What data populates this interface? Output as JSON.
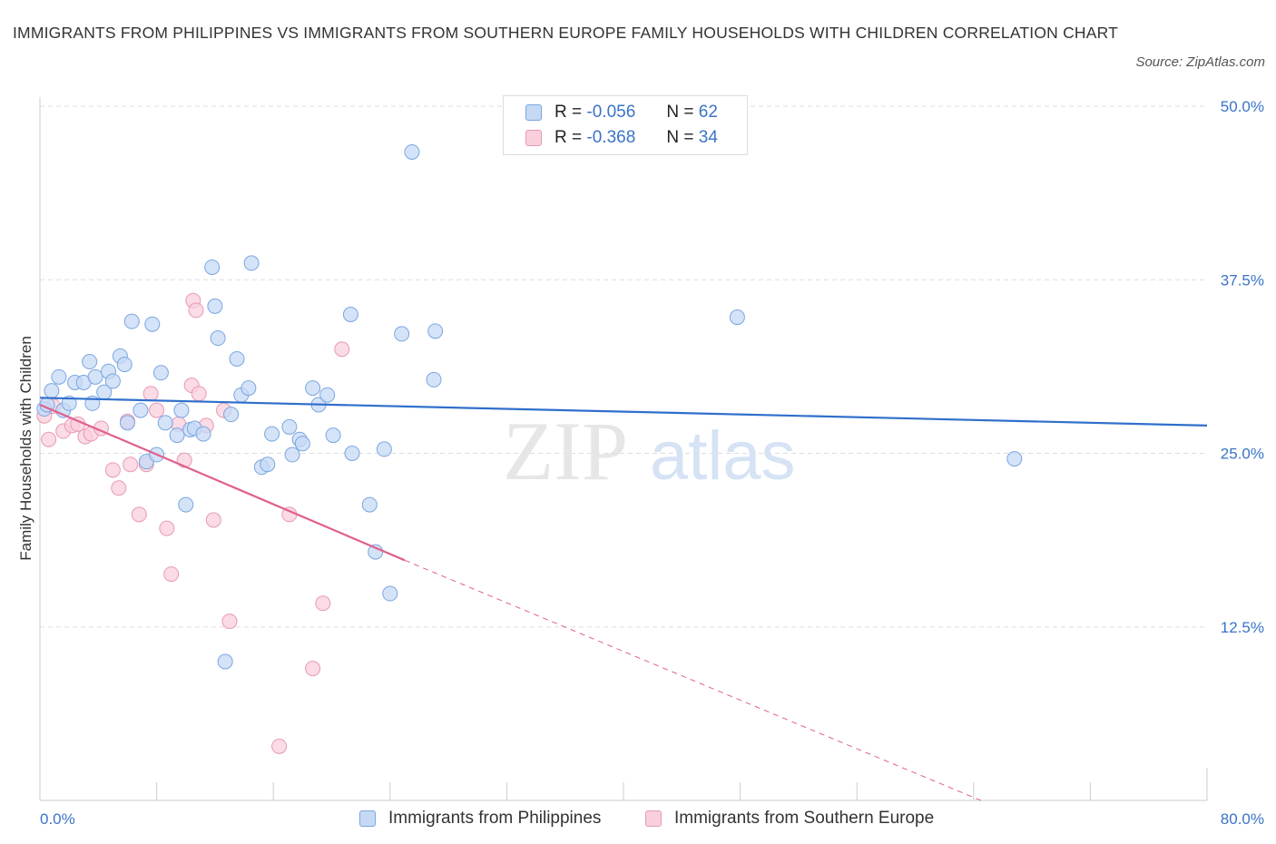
{
  "title": "IMMIGRANTS FROM PHILIPPINES VS IMMIGRANTS FROM SOUTHERN EUROPE FAMILY HOUSEHOLDS WITH CHILDREN CORRELATION CHART",
  "source": "Source: ZipAtlas.com",
  "watermark": {
    "zip": "ZIP",
    "atlas": "atlas"
  },
  "legend": {
    "r_label": "R =",
    "n_label": "N =",
    "blue": {
      "r": "-0.056",
      "n": "62"
    },
    "pink": {
      "r": "-0.368",
      "n": "34"
    }
  },
  "colors": {
    "blue_fill": "#c5d9f5",
    "blue_stroke": "#7aa6e0",
    "blue_line": "#2f6fcb",
    "pink_fill": "#f9cfdc",
    "pink_stroke": "#e89ab3",
    "pink_line": "#e0608e",
    "axis_label": "#3a73c8",
    "grid": "#dddddd"
  },
  "chart_data": {
    "type": "scatter",
    "title": "IMMIGRANTS FROM PHILIPPINES VS IMMIGRANTS FROM SOUTHERN EUROPE FAMILY HOUSEHOLDS WITH CHILDREN CORRELATION CHART",
    "xlabel": "",
    "ylabel": "Family Households with Children",
    "xlim": [
      0,
      80
    ],
    "ylim": [
      0,
      50
    ],
    "x_tick_labels": [
      "0.0%",
      "80.0%"
    ],
    "y_ticks": [
      12.5,
      25.0,
      37.5,
      50.0
    ],
    "y_tick_labels": [
      "12.5%",
      "25.0%",
      "37.5%",
      "50.0%"
    ],
    "grid": true,
    "series": [
      {
        "name": "Immigrants from Philippines",
        "color": "#7aa6e0",
        "trend": {
          "x": [
            0,
            80
          ],
          "y": [
            29.0,
            27.0
          ]
        },
        "points": [
          [
            0.3,
            28.2
          ],
          [
            0.8,
            29.5
          ],
          [
            1.3,
            30.5
          ],
          [
            1.6,
            28.1
          ],
          [
            2.0,
            28.6
          ],
          [
            2.4,
            30.1
          ],
          [
            3.0,
            30.1
          ],
          [
            3.4,
            31.6
          ],
          [
            3.6,
            28.6
          ],
          [
            3.8,
            30.5
          ],
          [
            4.4,
            29.4
          ],
          [
            4.7,
            30.9
          ],
          [
            5.0,
            30.2
          ],
          [
            5.5,
            32.0
          ],
          [
            5.8,
            31.4
          ],
          [
            6.0,
            27.2
          ],
          [
            6.3,
            34.5
          ],
          [
            6.9,
            28.1
          ],
          [
            7.3,
            24.4
          ],
          [
            7.7,
            34.3
          ],
          [
            8.0,
            24.9
          ],
          [
            8.3,
            30.8
          ],
          [
            8.6,
            27.2
          ],
          [
            9.4,
            26.3
          ],
          [
            9.7,
            28.1
          ],
          [
            10.0,
            21.3
          ],
          [
            10.3,
            26.7
          ],
          [
            10.6,
            26.8
          ],
          [
            11.2,
            26.4
          ],
          [
            12.0,
            35.6
          ],
          [
            11.8,
            38.4
          ],
          [
            12.2,
            33.3
          ],
          [
            12.7,
            10.0
          ],
          [
            13.1,
            27.8
          ],
          [
            13.5,
            31.8
          ],
          [
            13.8,
            29.2
          ],
          [
            14.3,
            29.7
          ],
          [
            14.5,
            38.7
          ],
          [
            15.2,
            24.0
          ],
          [
            15.6,
            24.2
          ],
          [
            15.9,
            26.4
          ],
          [
            17.1,
            26.9
          ],
          [
            17.3,
            24.9
          ],
          [
            17.8,
            26.0
          ],
          [
            18.0,
            25.7
          ],
          [
            18.7,
            29.7
          ],
          [
            19.1,
            28.5
          ],
          [
            19.7,
            29.2
          ],
          [
            20.1,
            26.3
          ],
          [
            21.3,
            35.0
          ],
          [
            21.4,
            25.0
          ],
          [
            22.6,
            21.3
          ],
          [
            23.0,
            17.9
          ],
          [
            23.6,
            25.3
          ],
          [
            24.0,
            14.9
          ],
          [
            24.8,
            33.6
          ],
          [
            25.5,
            46.7
          ],
          [
            27.1,
            33.8
          ],
          [
            27.0,
            30.3
          ],
          [
            47.8,
            34.8
          ],
          [
            66.8,
            24.6
          ],
          [
            0.5,
            28.5
          ]
        ]
      },
      {
        "name": "Immigrants from Southern Europe",
        "color": "#e89ab3",
        "trend": {
          "x": [
            0,
            25.0
          ],
          "y": [
            28.5,
            17.3
          ]
        },
        "trend_dashed": {
          "x": [
            25.0,
            64.5
          ],
          "y": [
            17.3,
            0.0
          ]
        },
        "points": [
          [
            0.3,
            27.7
          ],
          [
            0.6,
            26.0
          ],
          [
            0.9,
            28.4
          ],
          [
            1.6,
            26.6
          ],
          [
            2.2,
            27.0
          ],
          [
            2.6,
            27.1
          ],
          [
            3.1,
            26.2
          ],
          [
            3.5,
            26.4
          ],
          [
            4.2,
            26.8
          ],
          [
            5.0,
            23.8
          ],
          [
            5.4,
            22.5
          ],
          [
            6.0,
            27.3
          ],
          [
            6.2,
            24.2
          ],
          [
            6.8,
            20.6
          ],
          [
            7.3,
            24.2
          ],
          [
            7.6,
            29.3
          ],
          [
            8.0,
            28.1
          ],
          [
            8.7,
            19.6
          ],
          [
            9.0,
            16.3
          ],
          [
            9.5,
            27.1
          ],
          [
            9.9,
            24.5
          ],
          [
            10.4,
            29.9
          ],
          [
            10.5,
            36.0
          ],
          [
            10.7,
            35.3
          ],
          [
            10.9,
            29.3
          ],
          [
            11.4,
            27.0
          ],
          [
            11.9,
            20.2
          ],
          [
            12.6,
            28.1
          ],
          [
            13.0,
            12.9
          ],
          [
            16.4,
            3.9
          ],
          [
            17.1,
            20.6
          ],
          [
            18.7,
            9.5
          ],
          [
            19.4,
            14.2
          ],
          [
            20.7,
            32.5
          ]
        ]
      }
    ]
  }
}
